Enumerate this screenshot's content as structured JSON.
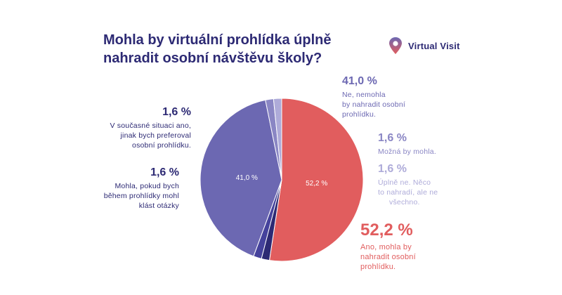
{
  "title_lines": [
    "Mohla by virtuální prohlídka úplně",
    "nahradit osobní návštěvu školy?"
  ],
  "brand": {
    "name": "Virtual Visit",
    "icon": "location-pin-icon"
  },
  "chart_data": {
    "type": "pie",
    "start_angle_deg": -90,
    "slices": [
      {
        "label": "Ano, mohla by nahradit osobní prohlídku.",
        "value": 52.2,
        "pct_text": "52,2 %",
        "inner_label": "52,2 %",
        "color": "#e15d5e"
      },
      {
        "label": "Mohla, pokud bych během prohlídky mohl klást otázky",
        "value": 1.6,
        "pct_text": "1,6 %",
        "inner_label": "",
        "color": "#2d2a74"
      },
      {
        "label": "V současné situaci ano, jinak bych preferoval osobní prohlídku.",
        "value": 1.6,
        "pct_text": "1,6 %",
        "inner_label": "",
        "color": "#45429c"
      },
      {
        "label": "Ne, nemohla by nahradit osobní prohlídku.",
        "value": 41.0,
        "pct_text": "41,0 %",
        "inner_label": "41,0 %",
        "color": "#6c68b2"
      },
      {
        "label": "Možná by mohla.",
        "value": 1.6,
        "pct_text": "1,6 %",
        "inner_label": "",
        "color": "#8a86c4"
      },
      {
        "label": "Úplně ne. Něco to nahradí, ale ne všechno.",
        "value": 1.6,
        "pct_text": "1,6 %",
        "inner_label": "",
        "color": "#aeabd9"
      }
    ]
  },
  "callouts": {
    "current": {
      "pct": "1,6 %",
      "lines": [
        "V současné situaci ano,",
        "jinak bych preferoval",
        "osobní prohlídku."
      ]
    },
    "questions": {
      "pct": "1,6 %",
      "lines": [
        "Mohla, pokud bych",
        "během prohlídky mohl",
        "klást otázky"
      ]
    },
    "no": {
      "pct": "41,0 %",
      "lines": [
        "Ne, nemohla",
        "by nahradit osobní",
        "prohlídku."
      ]
    },
    "maybe": {
      "pct": "1,6 %",
      "lines": [
        "Možná by mohla."
      ]
    },
    "notfully": {
      "pct": "1,6 %",
      "lines": [
        "Úplně ne. Něco",
        "to nahradí, ale ne",
        "všechno."
      ]
    },
    "yes": {
      "pct": "52,2 %",
      "lines": [
        "Ano, mohla by",
        "nahradit osobní",
        "prohlídku."
      ]
    }
  }
}
